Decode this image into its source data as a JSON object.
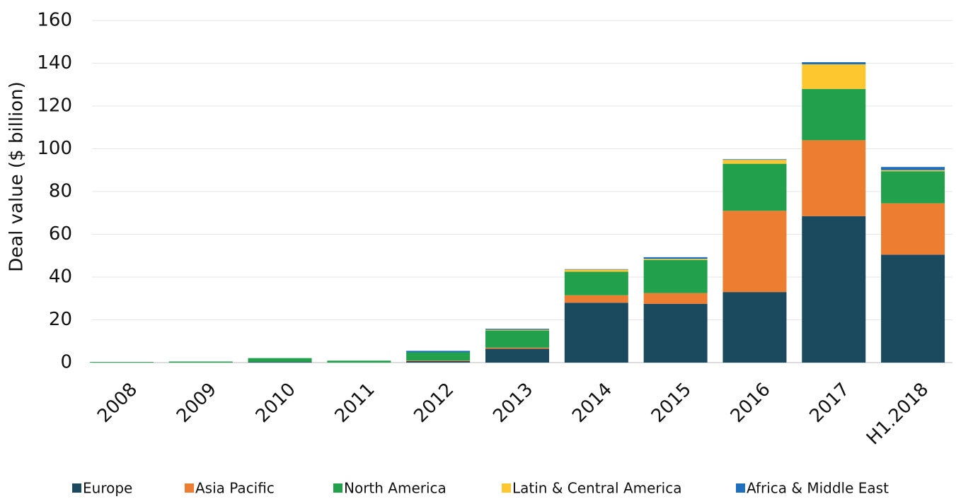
{
  "chart_data": {
    "type": "stacked_bar",
    "y_label": "Deal value ($ billion)",
    "categories": [
      "2008",
      "2009",
      "2010",
      "2011",
      "2012",
      "2013",
      "2014",
      "2015",
      "2016",
      "2017",
      "H1.2018"
    ],
    "series": [
      {
        "name": "Europe",
        "color": "#1b4a5f",
        "values": [
          0,
          0,
          0.3,
          0,
          0.7,
          6.5,
          28,
          27.5,
          33,
          68.5,
          50.5
        ]
      },
      {
        "name": "Asia Pacific",
        "color": "#ed7d31",
        "values": [
          0,
          0,
          0,
          0,
          0.3,
          0.5,
          3.5,
          5,
          38,
          35.5,
          24
        ]
      },
      {
        "name": "North America",
        "color": "#22a04b",
        "values": [
          0.3,
          0.5,
          1.8,
          0.9,
          3.8,
          8,
          11,
          15.5,
          22,
          24,
          15
        ]
      },
      {
        "name": "Latin & Central America",
        "color": "#fdc82f",
        "values": [
          0,
          0,
          0,
          0,
          0,
          0.3,
          1,
          0.5,
          1.8,
          11.5,
          0.5
        ]
      },
      {
        "name": "Africa & Middle East",
        "color": "#1f6fbf",
        "values": [
          0,
          0,
          0,
          0,
          0.7,
          0.5,
          0.2,
          0.8,
          0.3,
          1,
          1.5
        ]
      }
    ],
    "ylim": [
      0,
      160
    ],
    "yticks": [
      0,
      20,
      40,
      60,
      80,
      100,
      120,
      140,
      160
    ],
    "grid": true,
    "legend": "bottom"
  }
}
